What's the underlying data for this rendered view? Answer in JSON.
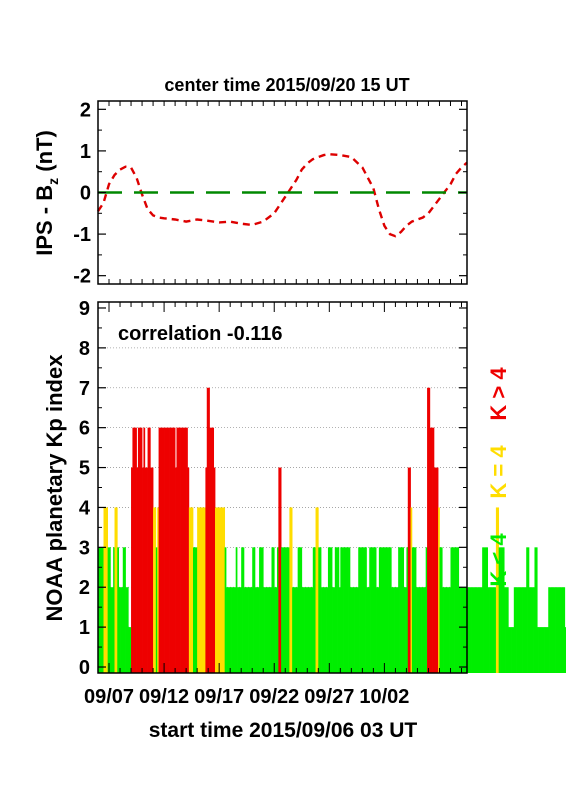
{
  "chart_data": [
    {
      "type": "line",
      "title": "center time 2015/09/20 15 UT",
      "ylabel_main": "IPS - B",
      "ylabel_sub": "z",
      "ylabel_unit": " (nT)",
      "ylim": [
        -2.2,
        2.2
      ],
      "yticks": [
        2,
        1,
        0,
        -1,
        -2
      ],
      "xlim": [
        0,
        33.5
      ],
      "series": [
        {
          "color": "#dd0000",
          "dash": "dashed",
          "x": [
            0,
            0.5,
            1,
            1.5,
            2,
            2.5,
            3,
            3.5,
            4,
            4.5,
            5,
            5.5,
            6,
            7,
            8,
            9,
            10,
            11,
            12,
            13,
            14,
            15,
            16,
            17,
            18,
            18.5,
            19,
            19.5,
            20,
            20.5,
            21,
            22,
            23,
            24,
            25,
            25.5,
            26,
            26.5,
            27,
            27.5,
            28,
            28.5,
            29,
            29.5,
            30,
            31,
            32,
            32.5,
            33,
            33.5
          ],
          "values": [
            -0.45,
            -0.25,
            0.2,
            0.42,
            0.55,
            0.62,
            0.6,
            0.35,
            -0.05,
            -0.4,
            -0.55,
            -0.6,
            -0.62,
            -0.65,
            -0.7,
            -0.65,
            -0.68,
            -0.72,
            -0.7,
            -0.75,
            -0.78,
            -0.7,
            -0.5,
            -0.1,
            0.3,
            0.55,
            0.7,
            0.8,
            0.85,
            0.9,
            0.92,
            0.9,
            0.85,
            0.6,
            0.1,
            -0.4,
            -0.8,
            -1.0,
            -1.05,
            -0.95,
            -0.8,
            -0.7,
            -0.65,
            -0.6,
            -0.5,
            -0.15,
            0.2,
            0.45,
            0.6,
            0.72
          ]
        },
        {
          "color": "#008800",
          "dash": "longdash",
          "x": [
            0,
            33.5
          ],
          "values": [
            0,
            0
          ]
        }
      ]
    },
    {
      "type": "bar",
      "ylabel": "NOAA planetary Kp index",
      "annotation": "correlation -0.116",
      "ylim": [
        -0.15,
        9.15
      ],
      "yticks": [
        9,
        8,
        7,
        6,
        5,
        4,
        3,
        2,
        1,
        0
      ],
      "xlim": [
        0,
        33.5
      ],
      "xtick_labels": [
        "09/07",
        "09/12",
        "09/17",
        "09/22",
        "09/27",
        "10/02"
      ],
      "xtick_days": [
        1,
        6,
        11,
        16,
        21,
        26
      ],
      "xlabel": "start time 2015/09/06 03 UT",
      "legend": [
        {
          "label": "K > 4",
          "color": "#ee0000"
        },
        {
          "label": "K = 4",
          "color": "#ffdd00"
        },
        {
          "label": "K < 4",
          "color": "#00ee00"
        }
      ],
      "colors": {
        "low": "#00ee00",
        "mid": "#ffdd00",
        "high": "#ee0000"
      },
      "bar_width_days": 0.125,
      "values": [
        3,
        3,
        3,
        3,
        4,
        4,
        4,
        3,
        3,
        2,
        2,
        3,
        4,
        4,
        3,
        2,
        2,
        2,
        3,
        3,
        2,
        2,
        1,
        1,
        5,
        6,
        6,
        6,
        5,
        6,
        6,
        6,
        5,
        6,
        5,
        5,
        6,
        6,
        5,
        5,
        4,
        4,
        3,
        4,
        6,
        6,
        6,
        6,
        6,
        6,
        6,
        6,
        6,
        6,
        6,
        6,
        5,
        6,
        6,
        6,
        6,
        6,
        6,
        6,
        6,
        5,
        4,
        4,
        4,
        3,
        3,
        3,
        4,
        4,
        4,
        4,
        4,
        4,
        5,
        7,
        7,
        6,
        6,
        6,
        5,
        4,
        4,
        4,
        4,
        4,
        4,
        4,
        3,
        2,
        2,
        2,
        2,
        2,
        2,
        2,
        3,
        2,
        2,
        2,
        3,
        3,
        2,
        2,
        2,
        2,
        2,
        2,
        3,
        3,
        2,
        2,
        2,
        3,
        3,
        3,
        2,
        2,
        2,
        2,
        2,
        2,
        3,
        3,
        2,
        2,
        3,
        5,
        5,
        3,
        3,
        3,
        3,
        3,
        3,
        4,
        4,
        2,
        2,
        2,
        2,
        3,
        3,
        3,
        2,
        2,
        2,
        2,
        2,
        2,
        2,
        2,
        3,
        3,
        4,
        4,
        3,
        3,
        2,
        2,
        2,
        2,
        2,
        3,
        3,
        3,
        2,
        2,
        3,
        3,
        3,
        2,
        3,
        3,
        3,
        3,
        3,
        3,
        3,
        2,
        2,
        2,
        2,
        2,
        2,
        3,
        3,
        3,
        3,
        3,
        3,
        2,
        2,
        3,
        3,
        3,
        3,
        3,
        2,
        2,
        3,
        3,
        3,
        3,
        3,
        3,
        3,
        3,
        3,
        2,
        2,
        2,
        2,
        2,
        3,
        3,
        3,
        3,
        2,
        2,
        3,
        5,
        5,
        4,
        3,
        3,
        3,
        2,
        2,
        2,
        2,
        2,
        2,
        2,
        3,
        7,
        7,
        6,
        6,
        6,
        5,
        5,
        5,
        4,
        3,
        3,
        2,
        2,
        2,
        2,
        2,
        2,
        3,
        3,
        3,
        3,
        3,
        3,
        2,
        2,
        2,
        2,
        2,
        2,
        2,
        2,
        2,
        2,
        2,
        2,
        2,
        2,
        2,
        2,
        2,
        3,
        3,
        3,
        3,
        2,
        2,
        2,
        2,
        2,
        2,
        4,
        4,
        3,
        3,
        3,
        3,
        2,
        2,
        2,
        1,
        1,
        1,
        1,
        2,
        2,
        2,
        2,
        2,
        2,
        2,
        2,
        2,
        3,
        3,
        2,
        2,
        2,
        2,
        3,
        3,
        1,
        1,
        1,
        1,
        1,
        1,
        1,
        1,
        2,
        2,
        2,
        2,
        2,
        2,
        2,
        2,
        2,
        2,
        2,
        2,
        1,
        1,
        1,
        1,
        2,
        2,
        3,
        3,
        3,
        3,
        2,
        2,
        2,
        2,
        1,
        1,
        1,
        1,
        1,
        1,
        2,
        2,
        2,
        2,
        1,
        1,
        1,
        1,
        1,
        1,
        1,
        1,
        1,
        1,
        2,
        2,
        2,
        2,
        2,
        2,
        1,
        1,
        1,
        1,
        1,
        1,
        2,
        2,
        2,
        1,
        1,
        1,
        1,
        1,
        1,
        1,
        1,
        1,
        1,
        1,
        1,
        1,
        1,
        1,
        1,
        1,
        1,
        1,
        1,
        1,
        1,
        1,
        1,
        1,
        1,
        1,
        2,
        2,
        2,
        2,
        2,
        3,
        3,
        3,
        3,
        1,
        1,
        1,
        1,
        1,
        1,
        1,
        1,
        1,
        1,
        1,
        1,
        1,
        1,
        1,
        1,
        1,
        1,
        2,
        2,
        2,
        2,
        2,
        2,
        2,
        3,
        3,
        3,
        3,
        3,
        3,
        3,
        4,
        4,
        2,
        2,
        2,
        2,
        4,
        4,
        3,
        3,
        3,
        4,
        4,
        3,
        3,
        2,
        2,
        2,
        2,
        1,
        1,
        3,
        3,
        4,
        4,
        3,
        3,
        2,
        2,
        2,
        2,
        2,
        2,
        2,
        2,
        2,
        2,
        4,
        4,
        5,
        5,
        3,
        3,
        4,
        4,
        4,
        3,
        3,
        3,
        3
      ]
    }
  ]
}
